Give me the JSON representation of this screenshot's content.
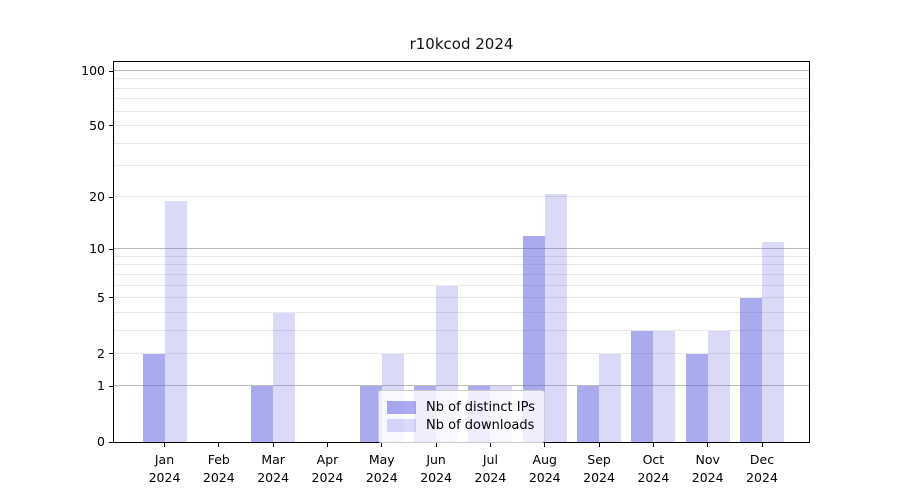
{
  "figure": {
    "title": "r10kcod 2024"
  },
  "chart_data": {
    "type": "bar",
    "title": "r10kcod 2024",
    "categories": [
      "Jan",
      "Feb",
      "Mar",
      "Apr",
      "May",
      "Jun",
      "Jul",
      "Aug",
      "Sep",
      "Oct",
      "Nov",
      "Dec"
    ],
    "x_tick_second_line": "2024",
    "series": [
      {
        "name": "Nb of distinct IPs",
        "color": "rgba(85,85,224,0.50)",
        "values": [
          2,
          0,
          1,
          0,
          1,
          1,
          1,
          12,
          1,
          3,
          2,
          5
        ]
      },
      {
        "name": "Nb of downloads",
        "color": "rgba(85,85,224,0.22)",
        "values": [
          19,
          0,
          4,
          0,
          2,
          6,
          1,
          21,
          2,
          3,
          3,
          11
        ]
      }
    ],
    "yscale": "log10(1+v)",
    "ylim": [
      0,
      112
    ],
    "yticks": [
      0,
      1,
      2,
      5,
      10,
      20,
      50,
      100
    ],
    "xlabel": "",
    "ylabel": "",
    "grid": true,
    "gridlines": {
      "major": [
        1,
        10,
        100
      ],
      "minor": [
        2,
        3,
        4,
        5,
        6,
        7,
        8,
        9,
        20,
        30,
        40,
        50,
        60,
        70,
        80,
        90
      ],
      "major_color": "#bcbcbc",
      "minor_color": "#e8e8e8"
    },
    "legend_position": "lower center",
    "axis_color": "#000000",
    "background_color": "#ffffff"
  }
}
